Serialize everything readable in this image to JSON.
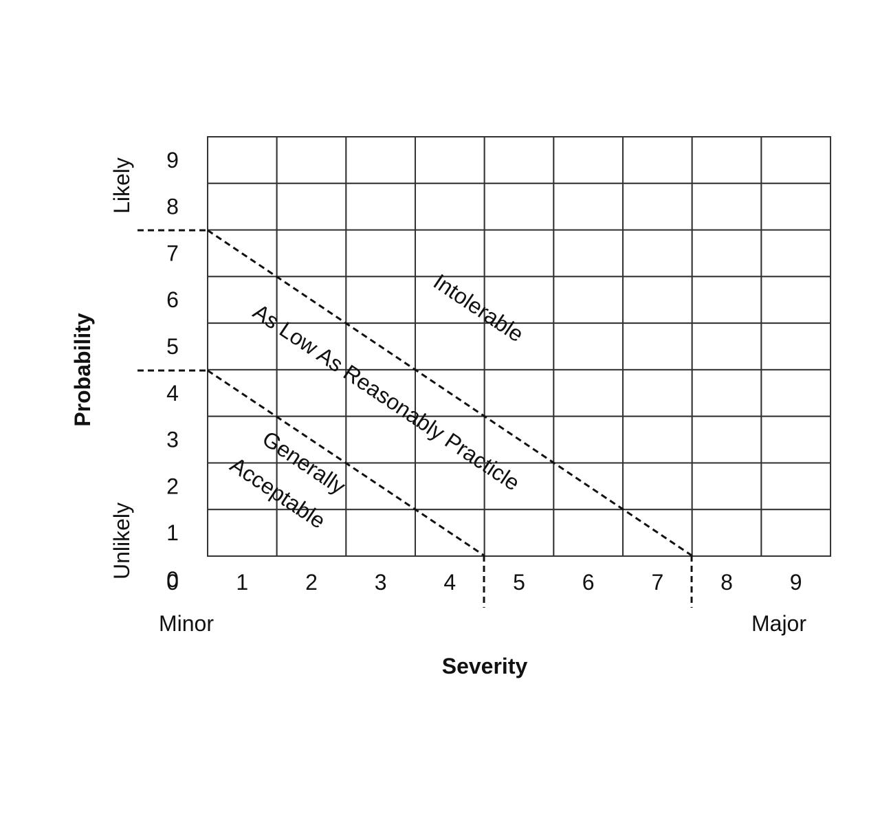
{
  "axes": {
    "x_title": "Severity",
    "y_title": "Probability",
    "x_ticks": [
      "0",
      "1",
      "2",
      "3",
      "4",
      "5",
      "6",
      "7",
      "8",
      "9"
    ],
    "y_ticks": [
      "0",
      "1",
      "2",
      "3",
      "4",
      "5",
      "6",
      "7",
      "8",
      "9"
    ],
    "x_low_label": "Minor",
    "x_high_label": "Major",
    "y_low_label": "Unlikely",
    "y_high_label": "Likely"
  },
  "grid": {
    "columns": 9,
    "rows": 9
  },
  "zones": {
    "acceptable": [
      "Generally",
      "Acceptable"
    ],
    "alarp": "As Low As Reasonably Practicle",
    "intolerable": "Intolerable"
  },
  "boundaries": [
    {
      "name": "lower",
      "y_intercept": 4.5,
      "x_intercept": 4.5
    },
    {
      "name": "upper",
      "y_intercept": 7.5,
      "x_intercept": 7.5
    }
  ]
}
